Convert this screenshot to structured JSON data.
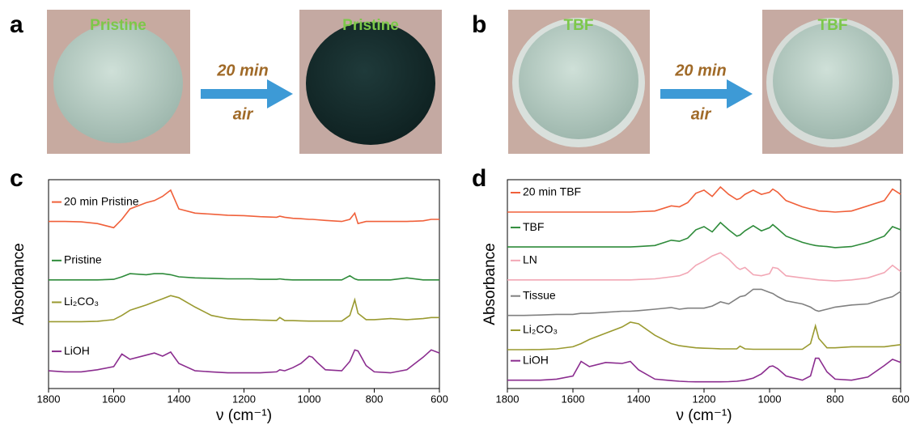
{
  "panel_labels": [
    "a",
    "b",
    "c",
    "d"
  ],
  "photos": {
    "a": {
      "before_label": "Pristine",
      "after_label": "Pristine",
      "arrow_top": "20 min",
      "arrow_bottom": "air"
    },
    "b": {
      "before_label": "TBF",
      "after_label": "TBF",
      "arrow_top": "20 min",
      "arrow_bottom": "air"
    }
  },
  "chart_data": [
    {
      "type": "line",
      "x_label": "ν (cm⁻¹)",
      "y_label": "Absorbance",
      "x": [
        1800,
        1750,
        1700,
        1650,
        1600,
        1575,
        1550,
        1500,
        1475,
        1450,
        1425,
        1400,
        1350,
        1300,
        1250,
        1200,
        1175,
        1150,
        1100,
        1090,
        1075,
        1050,
        1025,
        1000,
        990,
        975,
        950,
        900,
        875,
        860,
        850,
        825,
        800,
        750,
        700,
        650,
        625,
        600
      ],
      "xlim": [
        1800,
        600
      ],
      "xticks": [
        1800,
        1600,
        1400,
        1200,
        1000,
        800,
        600
      ],
      "ylim": [
        0,
        100
      ],
      "series": [
        {
          "name": "20 min Pristine",
          "color": "#f0603a",
          "values": [
            80,
            80,
            79.8,
            79,
            77,
            81,
            86,
            89,
            90,
            92,
            95,
            86,
            84,
            83.5,
            83,
            82.8,
            82.5,
            82.3,
            82,
            82.5,
            82,
            81.5,
            81.3,
            81,
            81,
            80.8,
            80.5,
            80,
            81,
            84,
            79,
            80,
            80,
            80,
            80,
            80.3,
            81,
            81
          ]
        },
        {
          "name": "Pristine",
          "color": "#2e8b3a",
          "values": [
            52,
            52,
            52,
            52,
            52.3,
            53.5,
            55,
            54.5,
            55,
            55,
            54.5,
            53.5,
            53,
            52.8,
            52.5,
            52.5,
            52.5,
            52.3,
            52.3,
            52.5,
            52.2,
            52,
            52,
            52,
            52,
            52,
            52,
            52,
            54,
            52.5,
            52,
            52,
            52,
            52,
            53,
            52,
            52,
            52
          ]
        },
        {
          "name": "Li₂CO₃",
          "color": "#9a9a30",
          "values": [
            32,
            32,
            32,
            32.2,
            33,
            35,
            37.5,
            40,
            41.5,
            43,
            44.5,
            43.5,
            39,
            35,
            33.5,
            33,
            33,
            32.8,
            32.6,
            34,
            32.5,
            32.5,
            32.4,
            32.3,
            32.3,
            32.3,
            32.3,
            32.3,
            35,
            42.5,
            36,
            33,
            33,
            33.5,
            33,
            33.5,
            34,
            34
          ]
        },
        {
          "name": "LiOH",
          "color": "#8b2d8f",
          "values": [
            8.5,
            8,
            8,
            9,
            10.5,
            16.5,
            14,
            16,
            17,
            15.5,
            17.5,
            12,
            8.5,
            8,
            7.5,
            7.5,
            7.5,
            7.5,
            8,
            9,
            8.5,
            10,
            12,
            15.5,
            15,
            12.5,
            9,
            8.5,
            13,
            18.5,
            18,
            11,
            8,
            7.5,
            9,
            15,
            18.5,
            17
          ]
        }
      ]
    },
    {
      "type": "line",
      "x_label": "ν (cm⁻¹)",
      "y_label": "Absorbance",
      "x": [
        1800,
        1750,
        1700,
        1650,
        1600,
        1575,
        1550,
        1500,
        1450,
        1425,
        1400,
        1350,
        1300,
        1275,
        1250,
        1225,
        1200,
        1175,
        1150,
        1125,
        1100,
        1090,
        1075,
        1050,
        1025,
        1000,
        990,
        975,
        950,
        900,
        875,
        860,
        850,
        825,
        800,
        750,
        700,
        650,
        625,
        600
      ],
      "xlim": [
        1800,
        600
      ],
      "xticks": [
        1800,
        1600,
        1400,
        1200,
        1000,
        800,
        600
      ],
      "ylim": [
        0,
        100
      ],
      "series": [
        {
          "name": "20 min TBF",
          "color": "#f0603a",
          "values": [
            84.5,
            84.5,
            84.5,
            84.5,
            84.5,
            84.5,
            84.5,
            84.5,
            84.5,
            84.5,
            84.7,
            85,
            87.5,
            87,
            89,
            93.5,
            95,
            92,
            96.5,
            93,
            90.5,
            91,
            93,
            95,
            93,
            94,
            95.5,
            94,
            90,
            87,
            86,
            85.5,
            85,
            84.8,
            84.5,
            85,
            87.5,
            90,
            95.5,
            93
          ]
        },
        {
          "name": "TBF",
          "color": "#2e8b3a",
          "values": [
            67.8,
            67.8,
            67.8,
            67.8,
            67.8,
            67.8,
            67.8,
            67.8,
            67.8,
            67.8,
            68,
            68.5,
            71,
            70.5,
            72,
            76,
            77.5,
            75,
            79.5,
            76,
            73,
            73.5,
            75.5,
            78,
            75.5,
            77,
            78.5,
            76.5,
            73,
            70,
            69,
            68.5,
            68.3,
            68,
            67.5,
            68,
            70,
            73,
            77.5,
            76
          ]
        },
        {
          "name": "LN",
          "color": "#f2a7b5",
          "values": [
            52,
            52,
            52,
            52,
            52,
            52,
            52,
            52,
            52,
            52,
            52.2,
            52.5,
            53.5,
            54,
            55.5,
            59,
            61,
            63.5,
            65,
            62,
            58,
            57,
            58,
            54.5,
            54,
            55,
            58,
            57.5,
            54,
            53,
            52.5,
            52.2,
            52,
            51.8,
            51.5,
            52,
            53,
            55.5,
            59,
            56
          ]
        },
        {
          "name": "Tissue",
          "color": "#808080",
          "values": [
            35,
            35,
            35.2,
            35.5,
            35.5,
            36,
            36,
            36.5,
            37,
            37,
            37.3,
            38,
            38.8,
            38,
            38.5,
            38.5,
            38.5,
            39.5,
            41.5,
            40.5,
            43,
            44,
            44.5,
            47.5,
            47.5,
            46,
            45.5,
            44,
            42,
            40.5,
            39,
            37.5,
            37,
            38,
            39,
            40,
            40.5,
            43,
            44,
            46.5
          ]
        },
        {
          "name": "Li₂CO₃",
          "color": "#9a9a30",
          "values": [
            18.6,
            18.6,
            18.7,
            19,
            20,
            21.5,
            23.5,
            26.5,
            29.5,
            31.8,
            31,
            25.5,
            21.5,
            20.5,
            20,
            19.5,
            19.3,
            19.2,
            19,
            19,
            19,
            20.3,
            19,
            18.8,
            18.8,
            18.8,
            18.8,
            18.8,
            18.8,
            18.8,
            21.5,
            30,
            24,
            19.5,
            19.5,
            20,
            20,
            20,
            20.5,
            21
          ]
        },
        {
          "name": "LiOH",
          "color": "#8b2d8f",
          "values": [
            4,
            4,
            4,
            4.5,
            6,
            13,
            10.5,
            12.5,
            12,
            13,
            9,
            4.5,
            3.8,
            3.5,
            3.3,
            3.2,
            3.2,
            3.2,
            3.2,
            3.3,
            3.5,
            3.7,
            4,
            5,
            7,
            10.5,
            10.8,
            9.5,
            6,
            4,
            6,
            14.5,
            14.5,
            8,
            4.5,
            4,
            5.5,
            11,
            14,
            12.5
          ]
        }
      ]
    }
  ]
}
